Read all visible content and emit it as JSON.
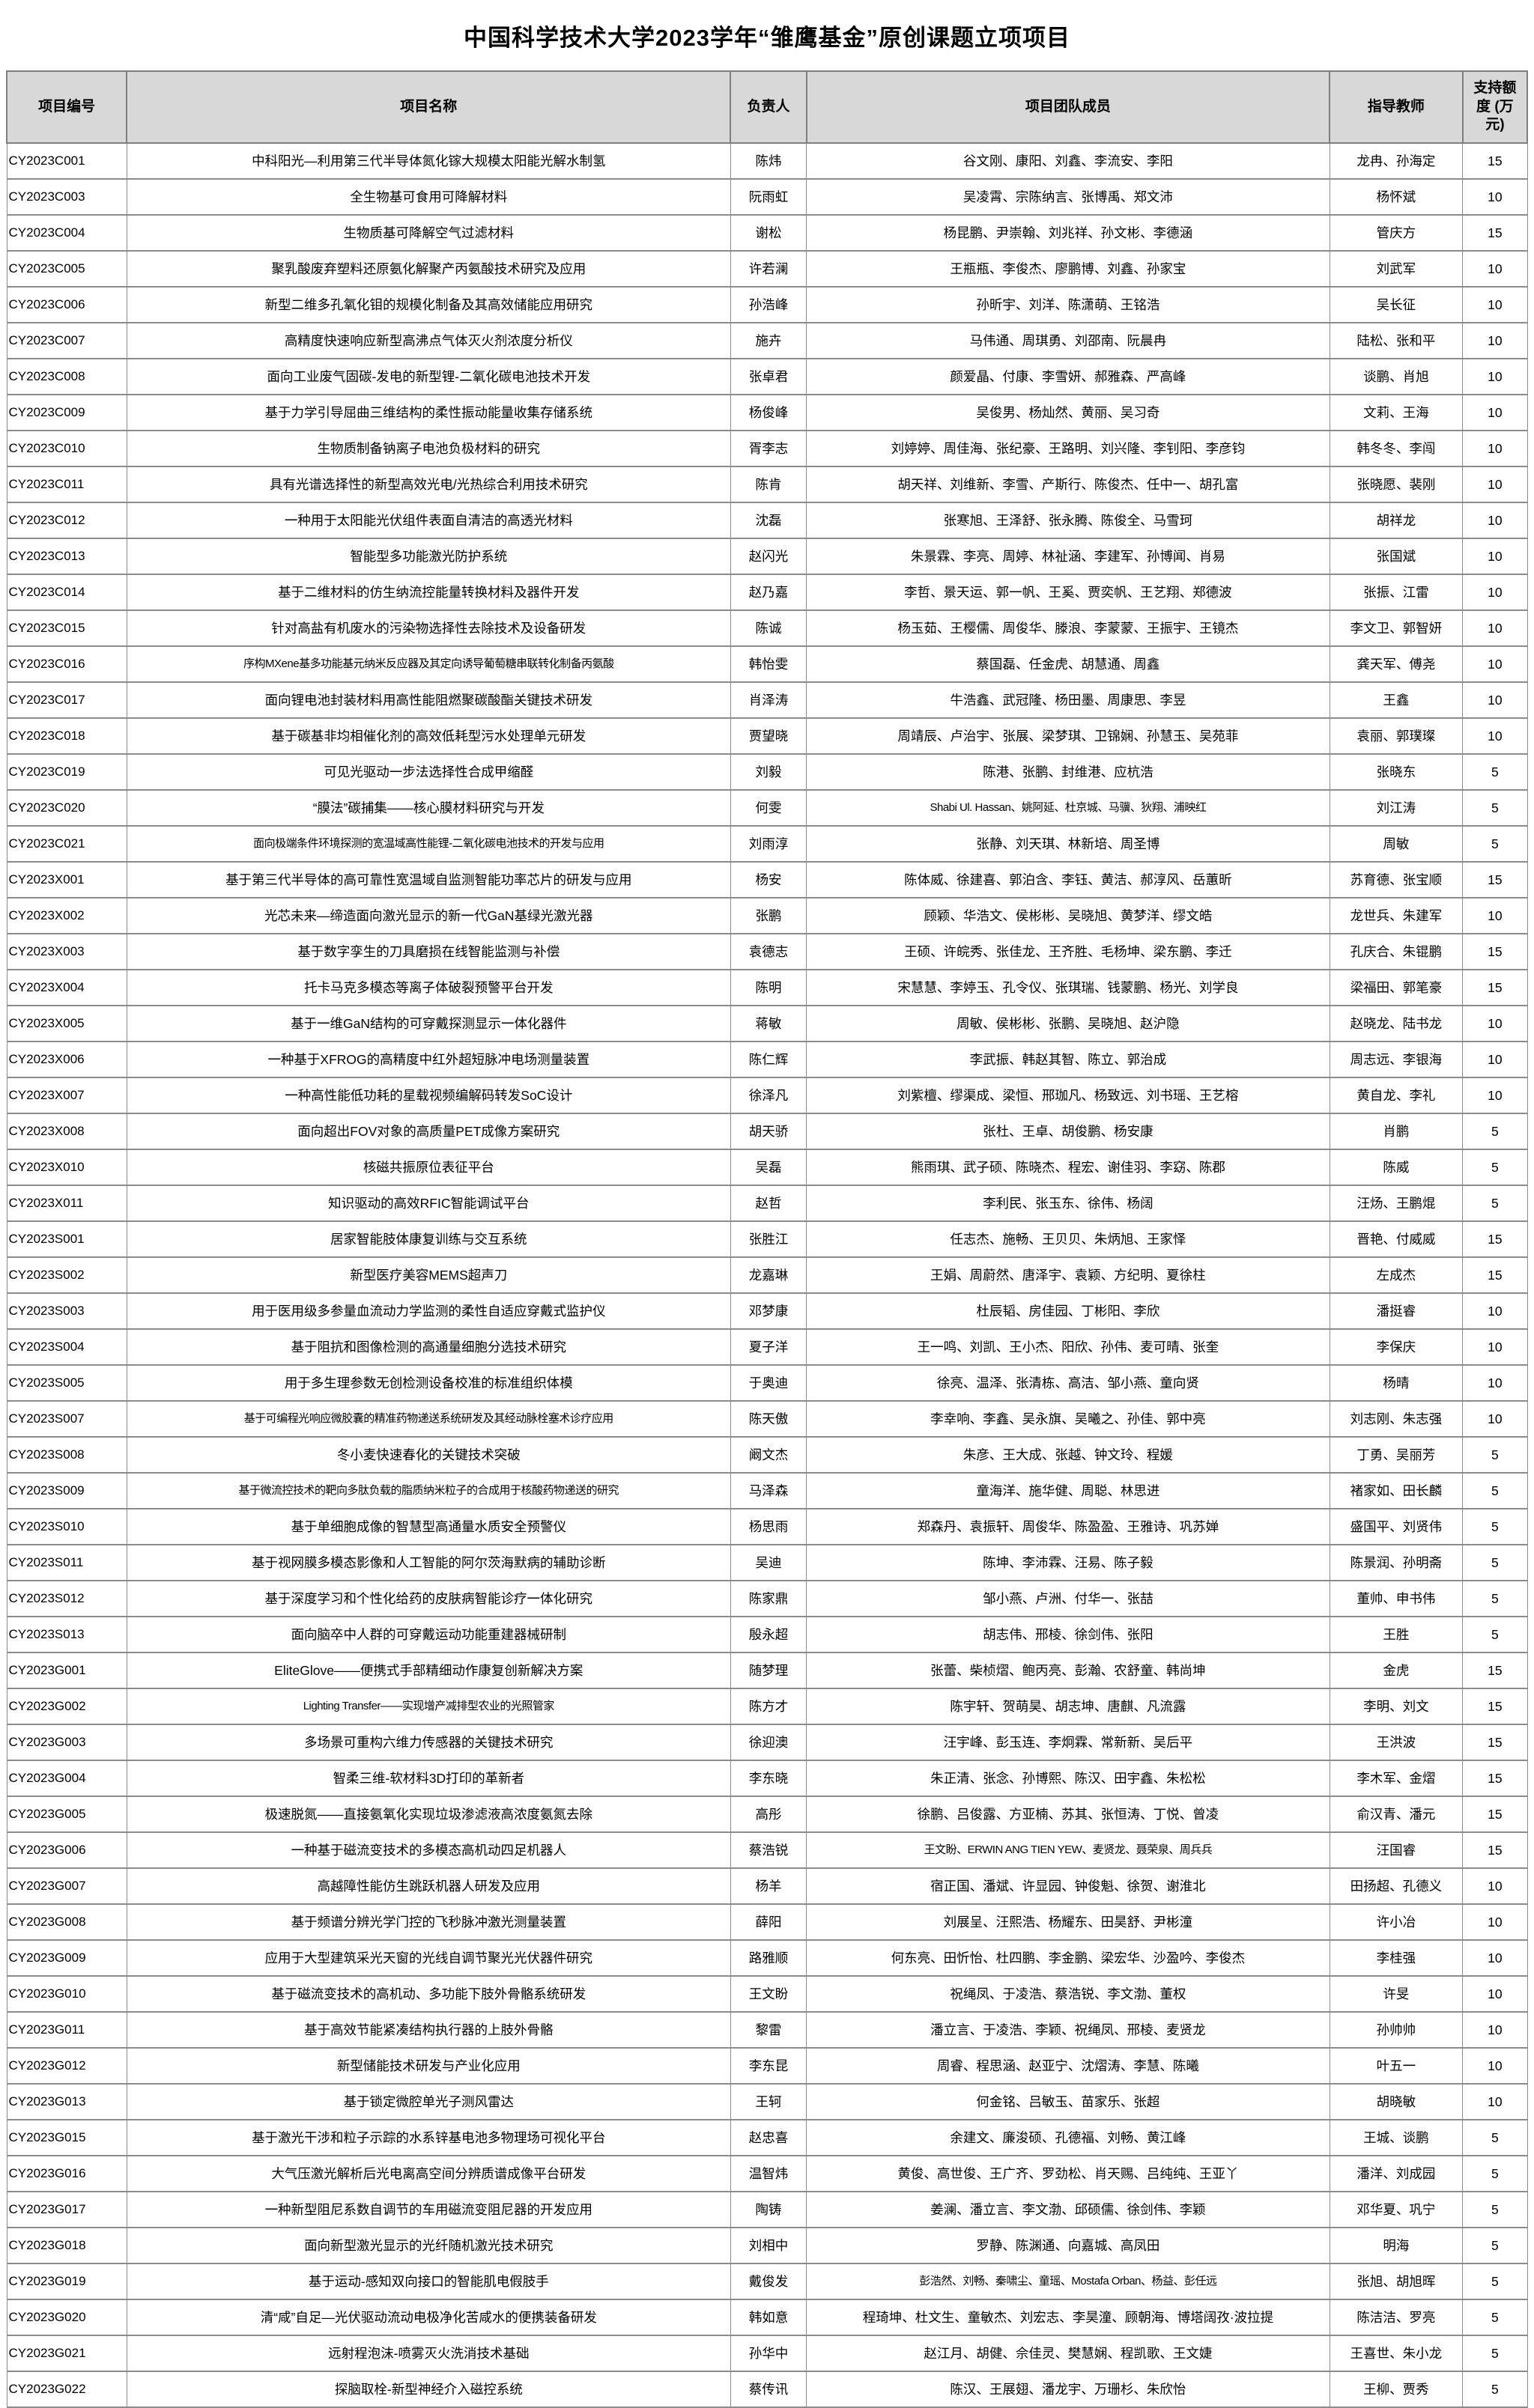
{
  "title": "中国科学技术大学2023学年“雏鹰基金”原创课题立项项目",
  "table": {
    "headers": [
      "项目编号",
      "项目名称",
      "负责人",
      "项目团队成员",
      "指导教师",
      "支持额度 (万元)"
    ],
    "rows": [
      [
        "CY2023C001",
        "中科阳光—利用第三代半导体氮化镓大规模太阳能光解水制氢",
        "陈炜",
        "谷文刚、康阳、刘鑫、李流安、李阳",
        "龙冉、孙海定",
        15
      ],
      [
        "CY2023C003",
        "全生物基可食用可降解材料",
        "阮雨虹",
        "吴凌霄、宗陈纳言、张博禹、郑文沛",
        "杨怀斌",
        10
      ],
      [
        "CY2023C004",
        "生物质基可降解空气过滤材料",
        "谢松",
        "杨昆鹏、尹崇翰、刘兆祥、孙文彬、李德涵",
        "管庆方",
        15
      ],
      [
        "CY2023C005",
        "聚乳酸废弃塑料还原氨化解聚产丙氨酸技术研究及应用",
        "许若澜",
        "王瓶瓶、李俊杰、廖鹏博、刘鑫、孙家宝",
        "刘武军",
        10
      ],
      [
        "CY2023C006",
        "新型二维多孔氧化钼的规模化制备及其高效储能应用研究",
        "孙浩峰",
        "孙昕宇、刘洋、陈潇萌、王铭浩",
        "吴长征",
        10
      ],
      [
        "CY2023C007",
        "高精度快速响应新型高沸点气体灭火剂浓度分析仪",
        "施卉",
        "马伟通、周琪勇、刘邵南、阮晨冉",
        "陆松、张和平",
        10
      ],
      [
        "CY2023C008",
        "面向工业废气固碳-发电的新型锂-二氧化碳电池技术开发",
        "张卓君",
        "颜爱晶、付康、李雪妍、郝雅森、严高峰",
        "谈鹏、肖旭",
        10
      ],
      [
        "CY2023C009",
        "基于力学引导屈曲三维结构的柔性振动能量收集存储系统",
        "杨俊峰",
        "吴俊男、杨灿然、黄丽、吴习奇",
        "文莉、王海",
        10
      ],
      [
        "CY2023C010",
        "生物质制备钠离子电池负极材料的研究",
        "胥李志",
        "刘婷婷、周佳海、张纪豪、王路明、刘兴隆、李钊阳、李彦钧",
        "韩冬冬、李闯",
        10
      ],
      [
        "CY2023C011",
        "具有光谱选择性的新型高效光电/光热综合利用技术研究",
        "陈肯",
        "胡天祥、刘维新、李雪、产斯行、陈俊杰、任中一、胡孔富",
        "张晓愿、裴刚",
        10
      ],
      [
        "CY2023C012",
        "一种用于太阳能光伏组件表面自清洁的高透光材料",
        "沈磊",
        "张寒旭、王泽舒、张永腾、陈俊全、马雪珂",
        "胡祥龙",
        10
      ],
      [
        "CY2023C013",
        "智能型多功能激光防护系统",
        "赵闪光",
        "朱景霖、李亮、周婷、林祉涵、李建军、孙博闻、肖易",
        "张国斌",
        10
      ],
      [
        "CY2023C014",
        "基于二维材料的仿生纳流控能量转换材料及器件开发",
        "赵乃嘉",
        "李哲、景天运、郭一帆、王奚、贾奕帆、王艺翔、郑德波",
        "张振、江雷",
        10
      ],
      [
        "CY2023C015",
        "针对高盐有机废水的污染物选择性去除技术及设备研发",
        "陈诚",
        "杨玉茹、王樱儒、周俊华、滕浪、李蒙蒙、王振宇、王镜杰",
        "李文卫、郭智妍",
        10
      ],
      [
        "CY2023C016",
        "序构MXene基多功能基元纳米反应器及其定向诱导葡萄糖串联转化制备丙氨酸",
        "韩怡雯",
        "蔡国磊、任金虎、胡慧通、周鑫",
        "龚天军、傅尧",
        10
      ],
      [
        "CY2023C017",
        "面向锂电池封装材料用高性能阻燃聚碳酸酯关键技术研发",
        "肖泽涛",
        "牛浩鑫、武冠隆、杨田墨、周康思、李昱",
        "王鑫",
        10
      ],
      [
        "CY2023C018",
        "基于碳基非均相催化剂的高效低耗型污水处理单元研发",
        "贾望晓",
        "周靖辰、卢治宇、张展、梁梦琪、卫锦娴、孙慧玉、吴苑菲",
        "袁丽、郭璞璨",
        10
      ],
      [
        "CY2023C019",
        "可见光驱动一步法选择性合成甲缩醛",
        "刘毅",
        "陈港、张鹏、封维港、应杭浩",
        "张晓东",
        5
      ],
      [
        "CY2023C020",
        "“膜法”碳捕集——核心膜材料研究与开发",
        "何雯",
        "Shabi Ul. Hassan、姚阿延、杜京城、马骥、狄翔、浦映红",
        "刘江涛",
        5
      ],
      [
        "CY2023C021",
        "面向极端条件环境探测的宽温域高性能锂-二氧化碳电池技术的开发与应用",
        "刘雨淳",
        "张静、刘天琪、林新培、周圣博",
        "周敏",
        5
      ],
      [
        "CY2023X001",
        "基于第三代半导体的高可靠性宽温域自监测智能功率芯片的研发与应用",
        "杨安",
        "陈体威、徐建喜、郭泊含、李钰、黄洁、郝淳风、岳蕙昕",
        "苏育德、张宝顺",
        15
      ],
      [
        "CY2023X002",
        "光芯未来—缔造面向激光显示的新一代GaN基绿光激光器",
        "张鹏",
        "顾颖、华浩文、侯彬彬、吴晓旭、黄梦洋、缪文皓",
        "龙世兵、朱建军",
        10
      ],
      [
        "CY2023X003",
        "基于数字孪生的刀具磨损在线智能监测与补偿",
        "袁德志",
        "王硕、许皖秀、张佳龙、王齐胜、毛杨坤、梁东鹏、李迁",
        "孔庆合、朱锟鹏",
        15
      ],
      [
        "CY2023X004",
        "托卡马克多模态等离子体破裂预警平台开发",
        "陈明",
        "宋慧慧、李婷玉、孔令仪、张琪瑞、钱蒙鹏、杨光、刘学良",
        "梁福田、郭笔豪",
        15
      ],
      [
        "CY2023X005",
        "基于一维GaN结构的可穿戴探测显示一体化器件",
        "蒋敏",
        "周敏、侯彬彬、张鹏、吴晓旭、赵沪隐",
        "赵晓龙、陆书龙",
        10
      ],
      [
        "CY2023X006",
        "一种基于XFROG的高精度中红外超短脉冲电场测量装置",
        "陈仁辉",
        "李武振、韩赵其智、陈立、郭治成",
        "周志远、李银海",
        10
      ],
      [
        "CY2023X007",
        "一种高性能低功耗的星载视频编解码转发SoC设计",
        "徐泽凡",
        "刘紫檀、缪渠成、梁恒、邢珈凡、杨致远、刘书瑶、王艺榕",
        "黄自龙、李礼",
        10
      ],
      [
        "CY2023X008",
        "面向超出FOV对象的高质量PET成像方案研究",
        "胡天骄",
        "张杜、王卓、胡俊鹏、杨安康",
        "肖鹏",
        5
      ],
      [
        "CY2023X010",
        "核磁共振原位表征平台",
        "吴磊",
        "熊雨琪、武子硕、陈晓杰、程宏、谢佳羽、李窈、陈郡",
        "陈威",
        5
      ],
      [
        "CY2023X011",
        "知识驱动的高效RFIC智能调试平台",
        "赵哲",
        "李利民、张玉东、徐伟、杨阔",
        "汪炀、王鹏焜",
        5
      ],
      [
        "CY2023S001",
        "居家智能肢体康复训练与交互系统",
        "张胜江",
        "任志杰、施畅、王贝贝、朱炳旭、王家怿",
        "晋艳、付威威",
        15
      ],
      [
        "CY2023S002",
        "新型医疗美容MEMS超声刀",
        "龙嘉琳",
        "王娟、周蔚然、唐泽宇、袁颖、方纪明、夏徐柱",
        "左成杰",
        15
      ],
      [
        "CY2023S003",
        "用于医用级多参量血流动力学监测的柔性自适应穿戴式监护仪",
        "邓梦康",
        "杜辰韬、房佳园、丁彬阳、李欣",
        "潘挺睿",
        10
      ],
      [
        "CY2023S004",
        "基于阻抗和图像检测的高通量细胞分选技术研究",
        "夏子洋",
        "王一鸣、刘凯、王小杰、阳欣、孙伟、麦可晴、张奎",
        "李保庆",
        10
      ],
      [
        "CY2023S005",
        "用于多生理参数无创检测设备校准的标准组织体模",
        "于奥迪",
        "徐亮、温泽、张清栋、高洁、邹小燕、童向贤",
        "杨晴",
        10
      ],
      [
        "CY2023S007",
        "基于可编程光响应微胶囊的精准药物递送系统研发及其经动脉栓塞术诊疗应用",
        "陈天傲",
        "李幸响、李鑫、吴永旗、吴曦之、孙佳、郭中亮",
        "刘志刚、朱志强",
        10
      ],
      [
        "CY2023S008",
        "冬小麦快速春化的关键技术突破",
        "阚文杰",
        "朱彦、王大成、张越、钟文玲、程媛",
        "丁勇、吴丽芳",
        5
      ],
      [
        "CY2023S009",
        "基于微流控技术的靶向多肽负载的脂质纳米粒子的合成用于核酸药物递送的研究",
        "马泽森",
        "童海洋、施华健、周聪、林思进",
        "褚家如、田长麟",
        5
      ],
      [
        "CY2023S010",
        "基于单细胞成像的智慧型高通量水质安全预警仪",
        "杨思雨",
        "郑森丹、袁振轩、周俊华、陈盈盈、王雅诗、巩苏婵",
        "盛国平、刘贤伟",
        5
      ],
      [
        "CY2023S011",
        "基于视网膜多模态影像和人工智能的阿尔茨海默病的辅助诊断",
        "吴迪",
        "陈坤、李沛霖、汪易、陈子毅",
        "陈景润、孙明斋",
        5
      ],
      [
        "CY2023S012",
        "基于深度学习和个性化给药的皮肤病智能诊疗一体化研究",
        "陈家鼎",
        "邹小燕、卢洲、付华一、张喆",
        "董帅、申书伟",
        5
      ],
      [
        "CY2023S013",
        "面向脑卒中人群的可穿戴运动功能重建器械研制",
        "殷永超",
        "胡志伟、邢棱、徐剑伟、张阳",
        "王胜",
        5
      ],
      [
        "CY2023G001",
        "EliteGlove——便携式手部精细动作康复创新解决方案",
        "随梦理",
        "张蕾、柴桢熠、鲍丙亮、彭瀚、农舒童、韩尚坤",
        "金虎",
        15
      ],
      [
        "CY2023G002",
        "Lighting Transfer——实现增产减排型农业的光照管家",
        "陈方才",
        "陈宇轩、贺萌昊、胡志坤、唐麒、凡流露",
        "李明、刘文",
        15
      ],
      [
        "CY2023G003",
        "多场景可重构六维力传感器的关键技术研究",
        "徐迎澳",
        "汪宇峰、彭玉连、李炯霖、常新新、吴后平",
        "王洪波",
        15
      ],
      [
        "CY2023G004",
        "智柔三维-软材料3D打印的革新者",
        "李东晓",
        "朱正清、张念、孙博熙、陈汉、田宇鑫、朱松松",
        "李木军、金熠",
        15
      ],
      [
        "CY2023G005",
        "极速脱氮——直接氨氧化实现垃圾渗滤液高浓度氨氮去除",
        "高彤",
        "徐鹏、吕俊露、方亚楠、苏其、张恒涛、丁悦、曾凌",
        "俞汉青、潘元",
        15
      ],
      [
        "CY2023G006",
        "一种基于磁流变技术的多模态高机动四足机器人",
        "蔡浩锐",
        "王文盼、ERWIN ANG TIEN YEW、麦贤龙、聂荣泉、周兵兵",
        "汪国睿",
        15
      ],
      [
        "CY2023G007",
        "高越障性能仿生跳跃机器人研发及应用",
        "杨羊",
        "宿正国、潘斌、许显园、钟俊魁、徐贺、谢淮北",
        "田扬超、孔德义",
        10
      ],
      [
        "CY2023G008",
        "基于频谱分辨光学门控的飞秒脉冲激光测量装置",
        "薛阳",
        "刘展呈、汪熙浩、杨耀东、田昊舒、尹彬潼",
        "许小冶",
        10
      ],
      [
        "CY2023G009",
        "应用于大型建筑采光天窗的光线自调节聚光光伏器件研究",
        "路雅顺",
        "何东亮、田忻怡、杜四鹏、李金鹏、梁宏华、沙盈吟、李俊杰",
        "李桂强",
        10
      ],
      [
        "CY2023G010",
        "基于磁流变技术的高机动、多功能下肢外骨骼系统研发",
        "王文盼",
        "祝绳凤、于凌浩、蔡浩锐、李文渤、董权",
        "许旻",
        10
      ],
      [
        "CY2023G011",
        "基于高效节能紧凑结构执行器的上肢外骨骼",
        "黎雷",
        "潘立言、于凌浩、李颖、祝绳凤、邢棱、麦贤龙",
        "孙帅帅",
        10
      ],
      [
        "CY2023G012",
        "新型储能技术研发与产业化应用",
        "李东昆",
        "周睿、程思涵、赵亚宁、沈熠涛、李慧、陈曦",
        "叶五一",
        10
      ],
      [
        "CY2023G013",
        "基于锁定微腔单光子测风雷达",
        "王轲",
        "何金铭、吕敏玉、苗家乐、张超",
        "胡晓敏",
        10
      ],
      [
        "CY2023G015",
        "基于激光干涉和粒子示踪的水系锌基电池多物理场可视化平台",
        "赵忠喜",
        "余建文、廉浚硕、孔德福、刘畅、黄江峰",
        "王城、谈鹏",
        5
      ],
      [
        "CY2023G016",
        "大气压激光解析后光电离高空间分辨质谱成像平台研发",
        "温智炜",
        "黄俊、高世俊、王广齐、罗劲松、肖天赐、吕纯纯、王亚丫",
        "潘洋、刘成园",
        5
      ],
      [
        "CY2023G017",
        "一种新型阻尼系数自调节的车用磁流变阻尼器的开发应用",
        "陶铸",
        "姜澜、潘立言、李文渤、邱硕儒、徐剑伟、李颖",
        "邓华夏、巩宁",
        5
      ],
      [
        "CY2023G018",
        "面向新型激光显示的光纤随机激光技术研究",
        "刘相中",
        "罗静、陈渊通、向嘉城、高凤田",
        "明海",
        5
      ],
      [
        "CY2023G019",
        "基于运动-感知双向接口的智能肌电假肢手",
        "戴俊发",
        "彭浩然、刘畅、秦啸尘、童瑶、Mostafa Orban、杨益、彭任远",
        "张旭、胡旭晖",
        5
      ],
      [
        "CY2023G020",
        "清“咸”自足—光伏驱动流动电极净化苦咸水的便携装备研发",
        "韩如意",
        "程琦坤、杜文生、童敏杰、刘宏志、李昊潼、顾朝海、博塔阔孜·波拉提",
        "陈洁洁、罗亮",
        5
      ],
      [
        "CY2023G021",
        "远射程泡沫-喷雾灭火洗消技术基础",
        "孙华中",
        "赵江月、胡健、佘佳灵、樊慧娴、程凯歌、王文婕",
        "王喜世、朱小龙",
        5
      ],
      [
        "CY2023G022",
        "探脑取栓-新型神经介入磁控系统",
        "蔡传讯",
        "陈汉、王展翅、潘龙宇、万珊杉、朱欣怡",
        "王柳、贾秀",
        5
      ]
    ]
  }
}
